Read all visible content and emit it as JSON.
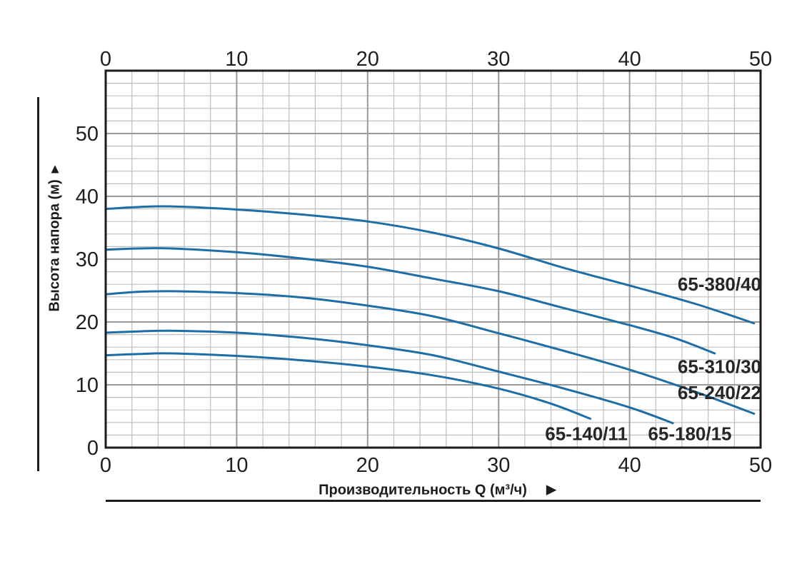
{
  "chart_data": {
    "type": "line",
    "title": "",
    "xlabel": "Производительность Q (м³/ч)",
    "ylabel": "Высота напора (м)",
    "x_axis": {
      "min": 0,
      "max": 50,
      "ticks": [
        0,
        10,
        20,
        30,
        40,
        50
      ],
      "minor_step": 2,
      "tick_labels_top": true,
      "tick_labels_bottom": true
    },
    "y_axis": {
      "min": 0,
      "max": 60,
      "ticks": [
        0,
        10,
        20,
        30,
        40,
        50
      ],
      "minor_step": 2
    },
    "grid": {
      "show": true,
      "minor_color": "#bfbfbf",
      "major_color": "#999999"
    },
    "colors": {
      "curve": "#1f6da6",
      "axis_border": "#1c1c1c",
      "text": "#1f1f1f"
    },
    "series": [
      {
        "name": "65-380/40",
        "points": [
          [
            0,
            38.0
          ],
          [
            2.5,
            38.3
          ],
          [
            5,
            38.4
          ],
          [
            10,
            37.9
          ],
          [
            15,
            37.1
          ],
          [
            20,
            36.0
          ],
          [
            25,
            34.2
          ],
          [
            30,
            31.7
          ],
          [
            35,
            28.6
          ],
          [
            40,
            25.8
          ],
          [
            45,
            22.9
          ],
          [
            49.5,
            19.8
          ]
        ],
        "label": {
          "text": "65-380/40",
          "q": 50.05,
          "h": 26.0,
          "anchor": "end"
        }
      },
      {
        "name": "65-310/30",
        "points": [
          [
            0,
            31.5
          ],
          [
            2.5,
            31.7
          ],
          [
            5,
            31.7
          ],
          [
            10,
            31.1
          ],
          [
            15,
            30.1
          ],
          [
            20,
            28.8
          ],
          [
            25,
            26.9
          ],
          [
            30,
            24.9
          ],
          [
            35,
            22.2
          ],
          [
            40,
            19.5
          ],
          [
            43.5,
            17.4
          ],
          [
            46.5,
            15.0
          ]
        ],
        "label": {
          "text": "65-310/30",
          "q": 50.05,
          "h": 12.9,
          "anchor": "end"
        }
      },
      {
        "name": "65-240/22",
        "points": [
          [
            0,
            24.4
          ],
          [
            2.5,
            24.8
          ],
          [
            5,
            24.9
          ],
          [
            10,
            24.6
          ],
          [
            15,
            23.9
          ],
          [
            20,
            22.6
          ],
          [
            25,
            20.9
          ],
          [
            30,
            18.2
          ],
          [
            35,
            15.4
          ],
          [
            40,
            12.4
          ],
          [
            45,
            8.9
          ],
          [
            49.5,
            5.4
          ]
        ],
        "label": {
          "text": "65-240/22",
          "q": 50.05,
          "h": 8.75,
          "anchor": "end"
        }
      },
      {
        "name": "65-180/15",
        "points": [
          [
            0,
            18.3
          ],
          [
            2.5,
            18.5
          ],
          [
            5,
            18.6
          ],
          [
            10,
            18.3
          ],
          [
            15,
            17.5
          ],
          [
            20,
            16.3
          ],
          [
            25,
            14.7
          ],
          [
            30,
            12.1
          ],
          [
            35,
            9.4
          ],
          [
            40,
            6.4
          ],
          [
            43.3,
            3.9
          ]
        ],
        "label": {
          "text": "65-180/15",
          "q": 44.6,
          "h": 2.2,
          "anchor": "middle"
        }
      },
      {
        "name": "65-140/11",
        "points": [
          [
            0,
            14.7
          ],
          [
            2.5,
            14.9
          ],
          [
            5,
            15.0
          ],
          [
            10,
            14.6
          ],
          [
            15,
            13.9
          ],
          [
            20,
            12.9
          ],
          [
            25,
            11.5
          ],
          [
            30,
            9.4
          ],
          [
            34,
            7.0
          ],
          [
            37,
            4.6
          ]
        ],
        "label": {
          "text": "65-140/11",
          "q": 36.7,
          "h": 2.2,
          "anchor": "middle"
        }
      }
    ]
  },
  "icons": {
    "y_axis_arrow_up": "▲",
    "x_axis_arrow_right": "▶"
  }
}
